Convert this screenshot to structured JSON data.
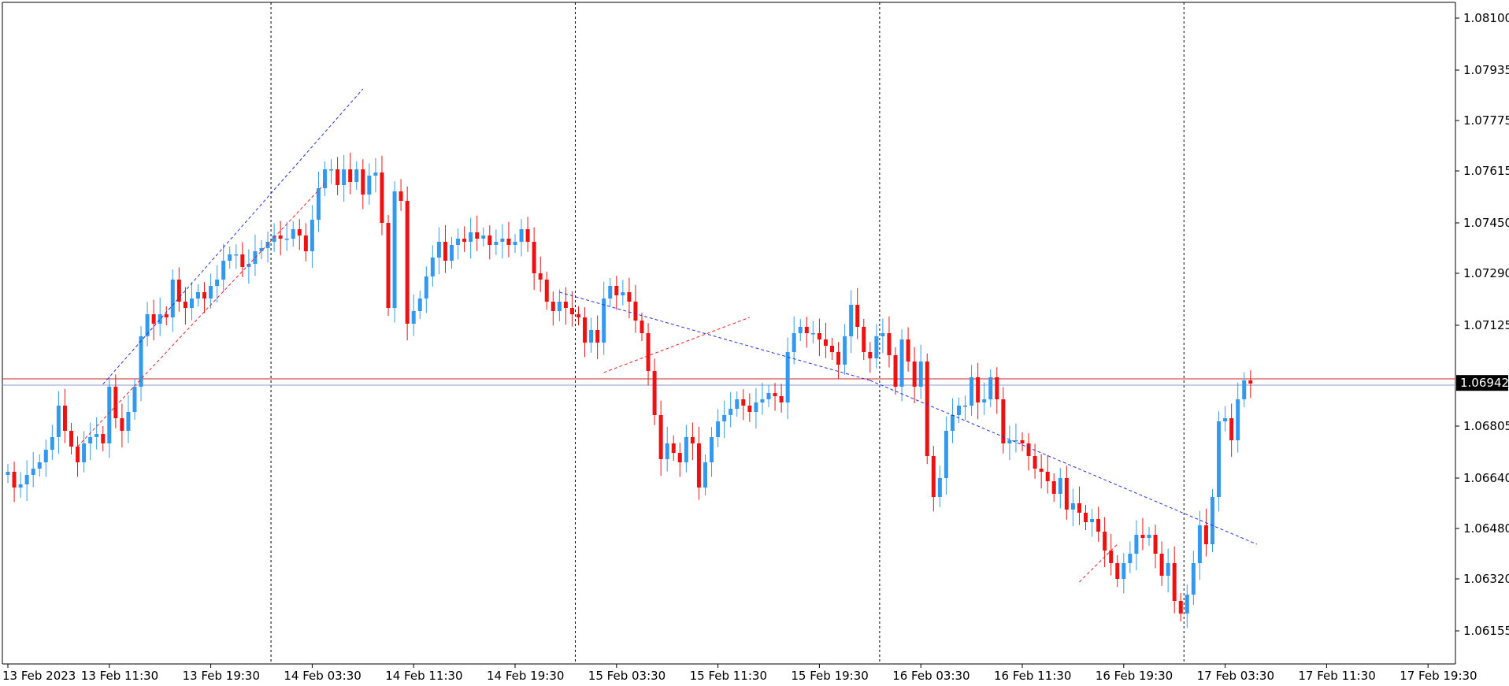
{
  "colors": {
    "background": "#ffffff",
    "bull": "#3399ee",
    "bear": "#ee1111",
    "axis": "#000000",
    "period_separator": "#000000",
    "price_badge_bg": "#000000",
    "price_badge_text": "#ffffff",
    "red_hline": "#cc2222",
    "blue_hline": "#8899cc",
    "zigzag_blue": "#2233dd",
    "zigzag_red": "#ee2222"
  },
  "chart_data": {
    "type": "candlestick",
    "symbol_timeframe": "",
    "ylim": [
      1.0605,
      1.0815
    ],
    "y_ticks": [
      1.081,
      1.07935,
      1.07775,
      1.07615,
      1.0745,
      1.0729,
      1.07125,
      1.06805,
      1.0664,
      1.0648,
      1.0632,
      1.06155
    ],
    "y_tick_labels": [
      "1.08100",
      "1.07935",
      "1.07775",
      "1.07615",
      "1.07450",
      "1.07290",
      "1.07125",
      "1.06805",
      "1.06640",
      "1.06480",
      "1.06320",
      "1.06155"
    ],
    "x_tick_labels": [
      {
        "bar": 0,
        "label": "13 Feb 2023"
      },
      {
        "bar": 16,
        "label": "13 Feb 11:30"
      },
      {
        "bar": 32,
        "label": "13 Feb 19:30"
      },
      {
        "bar": 48,
        "label": "14 Feb 03:30"
      },
      {
        "bar": 64,
        "label": "14 Feb 11:30"
      },
      {
        "bar": 80,
        "label": "14 Feb 19:30"
      },
      {
        "bar": 96,
        "label": "15 Feb 03:30"
      },
      {
        "bar": 112,
        "label": "15 Feb 11:30"
      },
      {
        "bar": 128,
        "label": "15 Feb 19:30"
      },
      {
        "bar": 144,
        "label": "16 Feb 03:30"
      },
      {
        "bar": 160,
        "label": "16 Feb 11:30"
      },
      {
        "bar": 176,
        "label": "16 Feb 19:30"
      },
      {
        "bar": 192,
        "label": "17 Feb 03:30"
      },
      {
        "bar": 208,
        "label": "17 Feb 11:30"
      },
      {
        "bar": 224,
        "label": "17 Feb 19:30"
      }
    ],
    "day_separators_bar": [
      41.5,
      89.5,
      137.5,
      185.5
    ],
    "current_price": 1.06942,
    "current_price_label": "1.06942",
    "horizontal_lines": [
      {
        "price": 1.06955,
        "kind": "red"
      },
      {
        "price": 1.06935,
        "kind": "blue"
      }
    ],
    "closes": [
      1.0666,
      1.0661,
      1.0662,
      1.0665,
      1.0667,
      1.0669,
      1.0673,
      1.0677,
      1.0687,
      1.0679,
      1.0674,
      1.0669,
      1.0675,
      1.0677,
      1.0678,
      1.0675,
      1.0693,
      1.0683,
      1.0679,
      1.0685,
      1.0693,
      1.0709,
      1.0716,
      1.0713,
      1.0716,
      1.0715,
      1.0727,
      1.072,
      1.0718,
      1.0721,
      1.0723,
      1.0721,
      1.0725,
      1.0727,
      1.0733,
      1.0735,
      1.0735,
      1.0731,
      1.0732,
      1.0736,
      1.0737,
      1.0739,
      1.0741,
      1.074,
      1.074,
      1.0743,
      1.0741,
      1.0736,
      1.0746,
      1.0756,
      1.0762,
      1.0762,
      1.0757,
      1.0762,
      1.0758,
      1.0762,
      1.0754,
      1.076,
      1.0761,
      1.0745,
      1.0718,
      1.0755,
      1.0752,
      1.0713,
      1.0717,
      1.0721,
      1.0728,
      1.0734,
      1.0739,
      1.0733,
      1.0738,
      1.074,
      1.0739,
      1.0742,
      1.074,
      1.0741,
      1.0738,
      1.0739,
      1.074,
      1.0738,
      1.0739,
      1.0743,
      1.0739,
      1.0729,
      1.0727,
      1.072,
      1.0717,
      1.072,
      1.0718,
      1.0716,
      1.0715,
      1.0707,
      1.0711,
      1.0707,
      1.0721,
      1.0725,
      1.0722,
      1.0723,
      1.072,
      1.0714,
      1.071,
      1.0698,
      1.0684,
      1.067,
      1.0675,
      1.0672,
      1.0669,
      1.0677,
      1.0675,
      1.0661,
      1.0669,
      1.0677,
      1.0682,
      1.0684,
      1.0686,
      1.0689,
      1.0687,
      1.0685,
      1.0688,
      1.0689,
      1.0691,
      1.069,
      1.0688,
      1.0704,
      1.071,
      1.0712,
      1.071,
      1.071,
      1.0708,
      1.0706,
      1.0704,
      1.07,
      1.0709,
      1.0719,
      1.0712,
      1.0704,
      1.0702,
      1.0709,
      1.071,
      1.0703,
      1.0693,
      1.0708,
      1.0701,
      1.0693,
      1.0701,
      1.0671,
      1.0658,
      1.0664,
      1.0679,
      1.0684,
      1.0687,
      1.0687,
      1.0696,
      1.0688,
      1.0689,
      1.0696,
      1.0689,
      1.0675,
      1.0676,
      1.0676,
      1.0675,
      1.0671,
      1.0667,
      1.0666,
      1.0663,
      1.0659,
      1.0664,
      1.0654,
      1.0656,
      1.0653,
      1.065,
      1.0651,
      1.0647,
      1.0641,
      1.0637,
      1.0632,
      1.0637,
      1.064,
      1.0646,
      1.0645,
      1.0646,
      1.064,
      1.0633,
      1.0637,
      1.0625,
      1.0621,
      1.0627,
      1.0637,
      1.0649,
      1.0643,
      1.0658,
      1.0682,
      1.0683,
      1.0676,
      1.0689,
      1.0695,
      1.0694
    ],
    "opens_first": 1.0665
  }
}
